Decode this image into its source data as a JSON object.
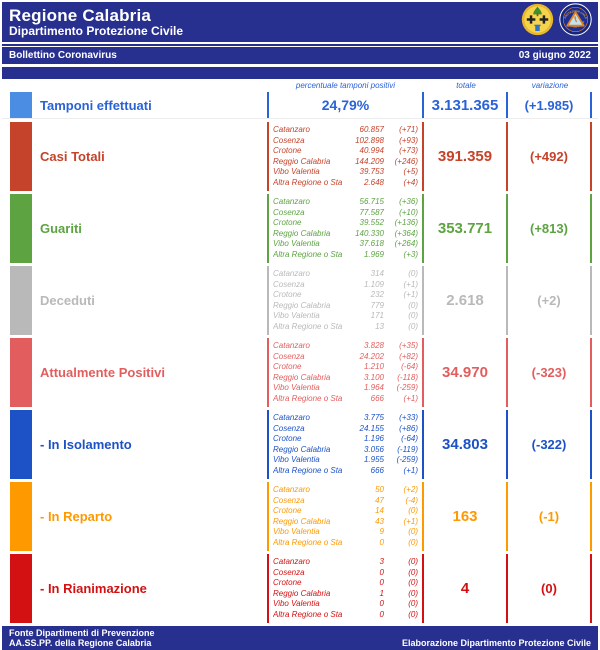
{
  "theme": {
    "navy": "#28308f",
    "header_text": "#ffffff",
    "column_header_color": "#2a62d8"
  },
  "header": {
    "title": "Regione Calabria",
    "subtitle": "Dipartimento Protezione Civile",
    "bulletin_label": "Bollettino Coronavirus",
    "date": "03 giugno 2022",
    "icons": {
      "left_logo": "regione-calabria-logo",
      "right_logo": "protezione-civile-logo"
    }
  },
  "columns": {
    "percent": "percentuale tamponi positivi",
    "total": "totale",
    "variation": "variazione"
  },
  "rows": [
    {
      "label": "Tamponi effettuati",
      "percent": "24,79%",
      "total": "3.131.365",
      "delta": "(+1.985)",
      "color": "#2a62d8",
      "swatch": "#4a8de2"
    },
    {
      "label": "Casi Totali",
      "total": "391.359",
      "delta": "(+492)",
      "color": "#c5432a",
      "swatch": "#c5432a",
      "provinces": [
        {
          "name": "Catanzaro",
          "value": "60.857",
          "delta": "(+71)"
        },
        {
          "name": "Cosenza",
          "value": "102.898",
          "delta": "(+93)"
        },
        {
          "name": "Crotone",
          "value": "40.994",
          "delta": "(+73)"
        },
        {
          "name": "Reggio Calabria",
          "value": "144.209",
          "delta": "(+246)"
        },
        {
          "name": "Vibo Valentia",
          "value": "39.753",
          "delta": "(+5)"
        },
        {
          "name": "Altra Regione o Stato Estero",
          "value": "2.648",
          "delta": "(+4)"
        }
      ]
    },
    {
      "label": "Guariti",
      "total": "353.771",
      "delta": "(+813)",
      "color": "#5da342",
      "swatch": "#5da342",
      "provinces": [
        {
          "name": "Catanzaro",
          "value": "56.715",
          "delta": "(+36)"
        },
        {
          "name": "Cosenza",
          "value": "77.587",
          "delta": "(+10)"
        },
        {
          "name": "Crotone",
          "value": "39.552",
          "delta": "(+136)"
        },
        {
          "name": "Reggio Calabria",
          "value": "140.330",
          "delta": "(+364)"
        },
        {
          "name": "Vibo Valentia",
          "value": "37.618",
          "delta": "(+264)"
        },
        {
          "name": "Altra Regione o Stato Estero",
          "value": "1.969",
          "delta": "(+3)"
        }
      ]
    },
    {
      "label": "Deceduti",
      "total": "2.618",
      "delta": "(+2)",
      "color": "#b9b9b9",
      "swatch": "#b9b9b9",
      "provinces": [
        {
          "name": "Catanzaro",
          "value": "314",
          "delta": "(0)"
        },
        {
          "name": "Cosenza",
          "value": "1.109",
          "delta": "(+1)"
        },
        {
          "name": "Crotone",
          "value": "232",
          "delta": "(+1)"
        },
        {
          "name": "Reggio Calabria",
          "value": "779",
          "delta": "(0)"
        },
        {
          "name": "Vibo Valentia",
          "value": "171",
          "delta": "(0)"
        },
        {
          "name": "Altra Regione o Stato Estero",
          "value": "13",
          "delta": "(0)"
        }
      ]
    },
    {
      "label": "Attualmente Positivi",
      "total": "34.970",
      "delta": "(-323)",
      "color": "#e25e5e",
      "swatch": "#e25e5e",
      "provinces": [
        {
          "name": "Catanzaro",
          "value": "3.828",
          "delta": "(+35)"
        },
        {
          "name": "Cosenza",
          "value": "24.202",
          "delta": "(+82)"
        },
        {
          "name": "Crotone",
          "value": "1.210",
          "delta": "(-64)"
        },
        {
          "name": "Reggio Calabria",
          "value": "3.100",
          "delta": "(-118)"
        },
        {
          "name": "Vibo Valentia",
          "value": "1.964",
          "delta": "(-259)"
        },
        {
          "name": "Altra Regione o Stato Estero",
          "value": "666",
          "delta": "(+1)"
        }
      ]
    },
    {
      "label": "- In Isolamento",
      "total": "34.803",
      "delta": "(-322)",
      "color": "#1c52c6",
      "swatch": "#1c52c6",
      "provinces": [
        {
          "name": "Catanzaro",
          "value": "3.775",
          "delta": "(+33)"
        },
        {
          "name": "Cosenza",
          "value": "24.155",
          "delta": "(+86)"
        },
        {
          "name": "Crotone",
          "value": "1.196",
          "delta": "(-64)"
        },
        {
          "name": "Reggio Calabria",
          "value": "3.056",
          "delta": "(-119)"
        },
        {
          "name": "Vibo Valentia",
          "value": "1.955",
          "delta": "(-259)"
        },
        {
          "name": "Altra Regione o Stato Estero",
          "value": "666",
          "delta": "(+1)"
        }
      ]
    },
    {
      "label": "- In Reparto",
      "total": "163",
      "delta": "(-1)",
      "color": "#fe9900",
      "swatch": "#fe9900",
      "provinces": [
        {
          "name": "Catanzaro",
          "value": "50",
          "delta": "(+2)"
        },
        {
          "name": "Cosenza",
          "value": "47",
          "delta": "(-4)"
        },
        {
          "name": "Crotone",
          "value": "14",
          "delta": "(0)"
        },
        {
          "name": "Reggio Calabria",
          "value": "43",
          "delta": "(+1)"
        },
        {
          "name": "Vibo Valentia",
          "value": "9",
          "delta": "(0)"
        },
        {
          "name": "Altra Regione o Stato Estero",
          "value": "0",
          "delta": "(0)"
        }
      ]
    },
    {
      "label": "- In Rianimazione",
      "total": "4",
      "delta": "(0)",
      "color": "#d31112",
      "swatch": "#d31112",
      "provinces": [
        {
          "name": "Catanzaro",
          "value": "3",
          "delta": "(0)"
        },
        {
          "name": "Cosenza",
          "value": "0",
          "delta": "(0)"
        },
        {
          "name": "Crotone",
          "value": "0",
          "delta": "(0)"
        },
        {
          "name": "Reggio Calabria",
          "value": "1",
          "delta": "(0)"
        },
        {
          "name": "Vibo Valentia",
          "value": "0",
          "delta": "(0)"
        },
        {
          "name": "Altra Regione o Stato Estero",
          "value": "0",
          "delta": "(0)"
        }
      ]
    }
  ],
  "footer": {
    "source_line1": "Fonte Dipartimenti di Prevenzione",
    "source_line2": "AA.SS.PP.  della Regione Calabria",
    "elaboration": "Elaborazione Dipartimento Protezione Civile"
  }
}
